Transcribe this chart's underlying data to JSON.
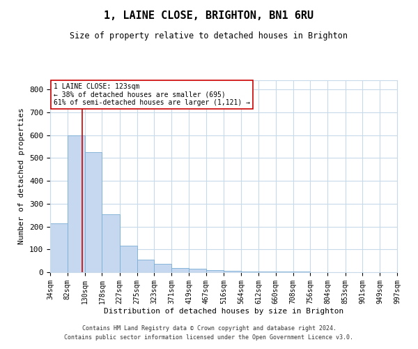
{
  "title": "1, LAINE CLOSE, BRIGHTON, BN1 6RU",
  "subtitle": "Size of property relative to detached houses in Brighton",
  "xlabel": "Distribution of detached houses by size in Brighton",
  "ylabel": "Number of detached properties",
  "property_size": 123,
  "annotation_line1": "1 LAINE CLOSE: 123sqm",
  "annotation_line2": "← 38% of detached houses are smaller (695)",
  "annotation_line3": "61% of semi-detached houses are larger (1,121) →",
  "bin_edges": [
    34,
    82,
    130,
    178,
    227,
    275,
    323,
    371,
    419,
    467,
    516,
    564,
    612,
    660,
    708,
    756,
    804,
    853,
    901,
    949,
    997
  ],
  "bar_heights": [
    214,
    600,
    524,
    253,
    116,
    56,
    36,
    19,
    15,
    10,
    6,
    4,
    3,
    2,
    2,
    1,
    1,
    1,
    1,
    0
  ],
  "bar_color": "#c5d8ef",
  "bar_edge_color": "#7aadd4",
  "red_line_color": "#cc0000",
  "annotation_box_color": "#cc0000",
  "background_color": "#ffffff",
  "grid_color": "#c8daea",
  "ylim": [
    0,
    840
  ],
  "yticks": [
    0,
    100,
    200,
    300,
    400,
    500,
    600,
    700,
    800
  ],
  "footer_line1": "Contains HM Land Registry data © Crown copyright and database right 2024.",
  "footer_line2": "Contains public sector information licensed under the Open Government Licence v3.0."
}
